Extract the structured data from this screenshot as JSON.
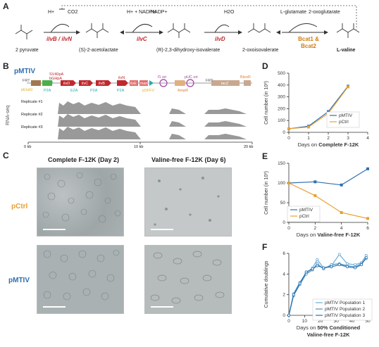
{
  "panels": {
    "a": "A",
    "b": "B",
    "c": "C",
    "d": "D",
    "e": "E",
    "f": "F"
  },
  "pathway": {
    "compounds": [
      "2 pyruvate",
      "(S)-2-acetolactate",
      "(R)-2,3-dihydroxy-isovalerate",
      "2-oxoisovalerate",
      "L-valine"
    ],
    "step1": {
      "cofactor_in": "H+",
      "cofactor_out": "CO2",
      "enzyme": "ilvB / ilvN"
    },
    "step2": {
      "cofactor_in": "H+ + NADPH",
      "cofactor_out": "NADP+",
      "enzyme": "ilvC"
    },
    "step3": {
      "cofactor_out": "H2O",
      "enzyme": "ilvD"
    },
    "step4": {
      "cofactor_in": "L-glutamate",
      "cofactor_out": "2-oxoglutarate",
      "enzyme_line1": "Bcat1 &",
      "enzyme_line2": "Bcat2"
    },
    "colors": {
      "enzyme": "#c0282d",
      "bcat": "#d07a10"
    }
  },
  "plasmid": {
    "name": "pMTIV",
    "labels": [
      "SV40pA",
      "bGHpA",
      "PuroR",
      "hygR",
      "FRT",
      "pEIaEl",
      "P2A",
      "ilvD",
      "ilvC",
      "ilvB",
      "E2A",
      "P2A",
      "ilvN",
      "ilvE",
      "marC",
      "P2A",
      "pSFFV",
      "f1 ori",
      "pUC ori",
      "FRT",
      "AmpR",
      "lacZ",
      "BleoR"
    ],
    "ylabel": "RNA-seq",
    "replicates": [
      "Replicate #1",
      "Replicate #2",
      "Replicate #3"
    ],
    "xticks": [
      "0 kb",
      "10 kb",
      "20 kb"
    ]
  },
  "microscopy": {
    "col1": "Complete F-12K  (Day 2)",
    "col2": "Valine-free F-12K (Day 6)",
    "row1": "pCtrl",
    "row2": "pMTIV"
  },
  "chart_data": [
    {
      "type": "line",
      "ylabel": "Cell number (in 10³)",
      "xlabel_prefix": "Days on ",
      "xlabel_bold": "Complete F-12K",
      "xlim": [
        0,
        4
      ],
      "ylim": [
        0,
        500
      ],
      "xticks": [
        0,
        1,
        2,
        3,
        4
      ],
      "yticks": [
        0,
        100,
        200,
        300,
        400,
        500
      ],
      "series": [
        {
          "name": "pMTIV",
          "color": "#2f6fb0",
          "x": [
            0,
            1,
            2,
            3
          ],
          "y": [
            30,
            52,
            175,
            390
          ]
        },
        {
          "name": "pCtrl",
          "color": "#e8a030",
          "x": [
            0,
            1,
            2,
            3
          ],
          "y": [
            30,
            45,
            160,
            385
          ]
        }
      ]
    },
    {
      "type": "line",
      "ylabel": "Cell number (in 10³)",
      "xlabel_prefix": "Days on ",
      "xlabel_bold": "Valine-free F-12K",
      "xlim": [
        0,
        6
      ],
      "ylim": [
        0,
        150
      ],
      "xticks": [
        0,
        2,
        4,
        6
      ],
      "yticks": [
        0,
        50,
        100,
        150
      ],
      "series": [
        {
          "name": "pMTIV",
          "color": "#2f6fb0",
          "x": [
            0,
            2,
            4,
            6
          ],
          "y": [
            100,
            103,
            95,
            136
          ]
        },
        {
          "name": "pCtrl",
          "color": "#e8a030",
          "x": [
            0,
            2,
            4,
            6
          ],
          "y": [
            100,
            68,
            25,
            10
          ]
        }
      ]
    },
    {
      "type": "line",
      "ylabel": "Cumulative doublings",
      "xlabel_prefix": "Days on ",
      "xlabel_bold": "50% Conditioned",
      "xlabel_line2": "Valine-free F-12K",
      "xlim": [
        0,
        50
      ],
      "ylim": [
        0,
        6
      ],
      "xticks": [
        0,
        10,
        20,
        30,
        40,
        50
      ],
      "yticks": [
        0,
        2,
        4,
        6
      ],
      "series": [
        {
          "name": "pMTIV Population 1",
          "color": "#6aaed6",
          "x": [
            0,
            3,
            7,
            11,
            15,
            18,
            22,
            27,
            32,
            37,
            42,
            46,
            49
          ],
          "y": [
            0,
            2.1,
            3.2,
            4.1,
            4.6,
            5.4,
            4.6,
            4.8,
            5.9,
            5.0,
            4.9,
            5.1,
            5.8
          ]
        },
        {
          "name": "pMTIV Population 2",
          "color": "#4a90c8",
          "x": [
            0,
            3,
            7,
            11,
            15,
            18,
            22,
            27,
            32,
            37,
            42,
            46,
            49
          ],
          "y": [
            0,
            1.9,
            3.0,
            4.0,
            4.4,
            5.0,
            4.5,
            4.9,
            5.0,
            4.8,
            4.7,
            5.0,
            5.5
          ]
        },
        {
          "name": "pMTIV Population 3",
          "color": "#2a6fa8",
          "x": [
            0,
            3,
            7,
            11,
            15,
            18,
            22,
            27,
            32,
            37,
            42,
            46,
            49
          ],
          "y": [
            0,
            2.0,
            3.1,
            4.2,
            4.5,
            4.8,
            4.6,
            4.7,
            4.9,
            4.7,
            4.6,
            4.9,
            5.6
          ]
        }
      ]
    }
  ]
}
